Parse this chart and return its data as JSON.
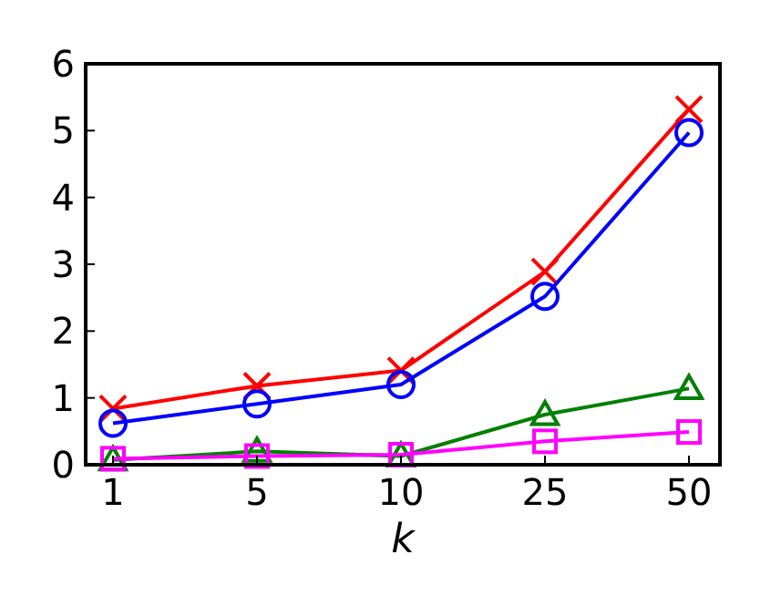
{
  "chart_data": {
    "type": "line",
    "xlabel": "k",
    "categories": [
      "1",
      "5",
      "10",
      "25",
      "50"
    ],
    "ylim": [
      0,
      6
    ],
    "yticks": [
      0,
      1,
      2,
      3,
      4,
      5,
      6
    ],
    "grid": false,
    "line_style": "solid",
    "series": [
      {
        "color": "#ff0000",
        "marker": "cross",
        "values": [
          0.84,
          1.18,
          1.41,
          2.89,
          5.32
        ]
      },
      {
        "color": "#0000ff",
        "marker": "circle",
        "values": [
          0.62,
          0.91,
          1.2,
          2.52,
          4.97
        ]
      },
      {
        "color": "#008000",
        "marker": "triangle",
        "values": [
          0.07,
          0.2,
          0.13,
          0.75,
          1.14
        ]
      },
      {
        "color": "#ff00ff",
        "marker": "square",
        "values": [
          0.09,
          0.13,
          0.15,
          0.35,
          0.49
        ]
      }
    ]
  }
}
